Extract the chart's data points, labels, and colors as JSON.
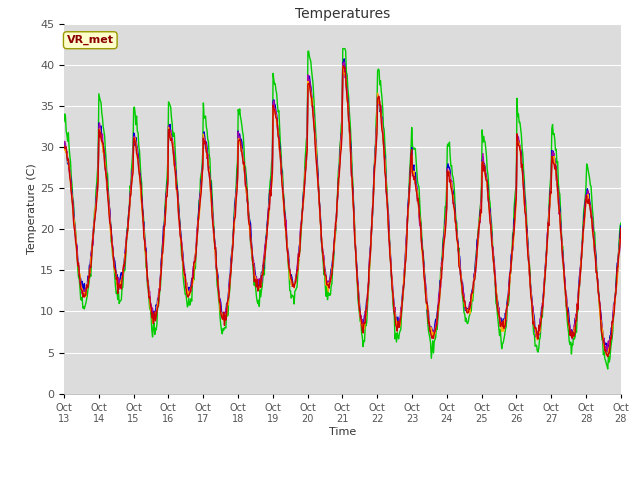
{
  "title": "Temperatures",
  "xlabel": "Time",
  "ylabel": "Temperature (C)",
  "ylim": [
    0,
    45
  ],
  "background_color": "#dcdcdc",
  "plot_bg_color": "#dcdcdc",
  "fig_bg_color": "#ffffff",
  "grid_color": "#ffffff",
  "annotation_text": "VR_met",
  "annotation_color": "#8b0000",
  "annotation_bg": "#ffffcc",
  "xtick_labels": [
    "Oct 13",
    "Oct 14",
    "Oct 15",
    "Oct 16",
    "Oct 17",
    "Oct 18",
    "Oct 19",
    "Oct 20",
    "Oct 21",
    "Oct 22",
    "Oct 23",
    "Oct 24",
    "Oct 25",
    "Oct 26",
    "Oct 27",
    "Oct 28"
  ],
  "series_colors": {
    "Panel T": "#cc0000",
    "Old Ref Temp": "#ffaa00",
    "AM25T Ref": "#00cc00",
    "HMP45 T": "#0000cc",
    "CNR1 PRT": "#aa00aa"
  },
  "line_width": 1.0,
  "day_maxs": [
    30,
    32,
    31,
    32,
    31,
    31,
    35,
    38,
    40,
    36,
    27,
    27,
    28,
    31,
    29,
    24
  ],
  "day_mins": [
    12,
    13,
    9,
    12,
    9,
    13,
    13,
    13,
    8,
    8,
    7,
    10,
    8,
    7,
    7,
    5
  ],
  "n_days": 16,
  "pts_per_day": 48
}
